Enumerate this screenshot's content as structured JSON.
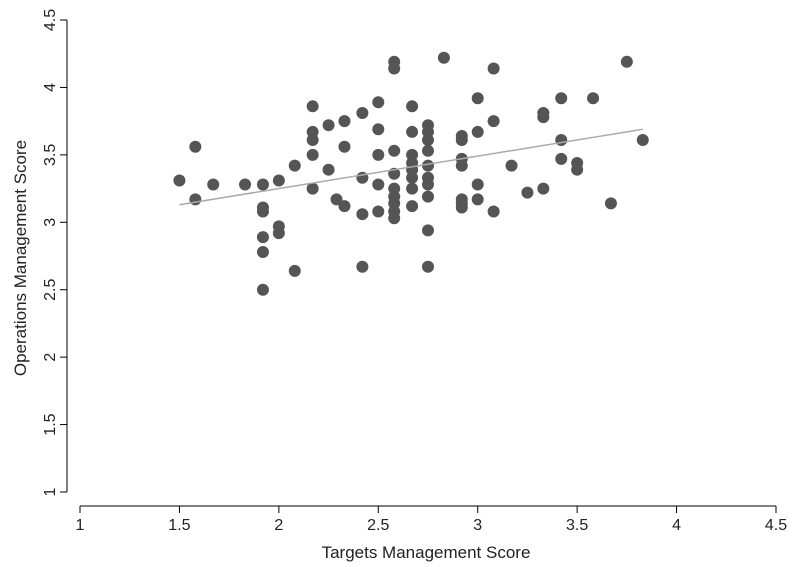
{
  "chart_data": {
    "type": "scatter",
    "title": "",
    "xlabel": "Targets Management Score",
    "ylabel": "Operations Management Score",
    "xlim": [
      1,
      4.5
    ],
    "ylim": [
      1,
      4.5
    ],
    "x_ticks": [
      "1",
      "1.5",
      "2",
      "2.5",
      "3",
      "3.5",
      "4",
      "4.5"
    ],
    "y_ticks": [
      "1",
      "1.5",
      "2",
      "2.5",
      "3",
      "3.5",
      "4",
      "4.5"
    ],
    "grid": false,
    "legend": "none",
    "colors": {
      "points": "#555555",
      "fit_line": "#aaaaaa",
      "axes": "#000000"
    },
    "fit_line": {
      "x": [
        1.5,
        3.83
      ],
      "y": [
        3.13,
        3.69
      ]
    },
    "points": [
      [
        1.5,
        3.31
      ],
      [
        1.58,
        3.56
      ],
      [
        1.58,
        3.17
      ],
      [
        1.67,
        3.28
      ],
      [
        1.83,
        3.28
      ],
      [
        1.92,
        3.28
      ],
      [
        1.92,
        3.11
      ],
      [
        1.92,
        3.08
      ],
      [
        1.92,
        2.89
      ],
      [
        1.92,
        2.78
      ],
      [
        1.92,
        2.5
      ],
      [
        2.0,
        3.31
      ],
      [
        2.0,
        2.97
      ],
      [
        2.0,
        2.92
      ],
      [
        2.08,
        3.42
      ],
      [
        2.08,
        2.64
      ],
      [
        2.17,
        3.86
      ],
      [
        2.17,
        3.67
      ],
      [
        2.17,
        3.61
      ],
      [
        2.17,
        3.5
      ],
      [
        2.17,
        3.25
      ],
      [
        2.25,
        3.72
      ],
      [
        2.25,
        3.39
      ],
      [
        2.29,
        3.17
      ],
      [
        2.33,
        3.75
      ],
      [
        2.33,
        3.56
      ],
      [
        2.33,
        3.12
      ],
      [
        2.42,
        3.81
      ],
      [
        2.42,
        3.33
      ],
      [
        2.42,
        3.06
      ],
      [
        2.42,
        2.67
      ],
      [
        2.5,
        3.89
      ],
      [
        2.5,
        3.69
      ],
      [
        2.5,
        3.5
      ],
      [
        2.5,
        3.28
      ],
      [
        2.5,
        3.08
      ],
      [
        2.58,
        4.19
      ],
      [
        2.58,
        4.14
      ],
      [
        2.58,
        3.53
      ],
      [
        2.58,
        3.36
      ],
      [
        2.58,
        3.25
      ],
      [
        2.58,
        3.19
      ],
      [
        2.58,
        3.14
      ],
      [
        2.58,
        3.08
      ],
      [
        2.58,
        3.03
      ],
      [
        2.67,
        3.86
      ],
      [
        2.67,
        3.67
      ],
      [
        2.67,
        3.5
      ],
      [
        2.67,
        3.44
      ],
      [
        2.67,
        3.39
      ],
      [
        2.67,
        3.33
      ],
      [
        2.67,
        3.25
      ],
      [
        2.67,
        3.12
      ],
      [
        2.75,
        3.72
      ],
      [
        2.75,
        3.67
      ],
      [
        2.75,
        3.61
      ],
      [
        2.75,
        3.53
      ],
      [
        2.75,
        3.42
      ],
      [
        2.75,
        3.33
      ],
      [
        2.75,
        3.28
      ],
      [
        2.75,
        3.19
      ],
      [
        2.75,
        2.94
      ],
      [
        2.75,
        2.67
      ],
      [
        2.83,
        4.22
      ],
      [
        2.92,
        3.64
      ],
      [
        2.92,
        3.61
      ],
      [
        2.92,
        3.47
      ],
      [
        2.92,
        3.42
      ],
      [
        2.92,
        3.17
      ],
      [
        2.92,
        3.14
      ],
      [
        2.92,
        3.11
      ],
      [
        3.0,
        3.92
      ],
      [
        3.0,
        3.67
      ],
      [
        3.0,
        3.28
      ],
      [
        3.0,
        3.17
      ],
      [
        3.08,
        4.14
      ],
      [
        3.08,
        3.75
      ],
      [
        3.08,
        3.08
      ],
      [
        3.17,
        3.42
      ],
      [
        3.25,
        3.22
      ],
      [
        3.33,
        3.81
      ],
      [
        3.33,
        3.78
      ],
      [
        3.33,
        3.25
      ],
      [
        3.42,
        3.92
      ],
      [
        3.42,
        3.61
      ],
      [
        3.42,
        3.47
      ],
      [
        3.5,
        3.44
      ],
      [
        3.5,
        3.39
      ],
      [
        3.58,
        3.92
      ],
      [
        3.67,
        3.14
      ],
      [
        3.75,
        4.19
      ],
      [
        3.83,
        3.61
      ]
    ]
  }
}
